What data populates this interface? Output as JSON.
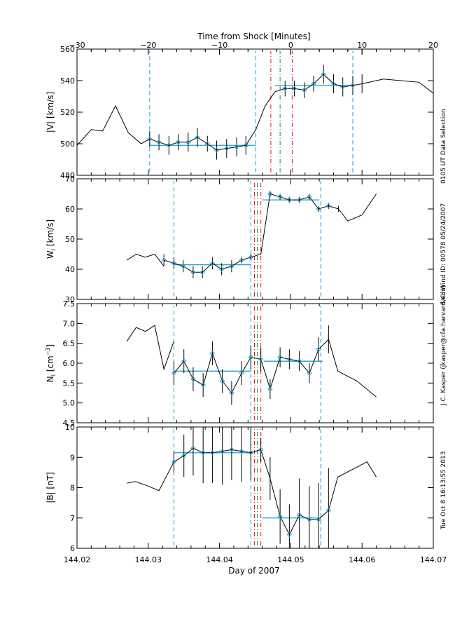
{
  "top_axis": {
    "label": "Time from Shock [Minutes]",
    "ticks": [
      "−30",
      "−20",
      "−10",
      "0",
      "10",
      "20"
    ],
    "range": [
      -30,
      20
    ]
  },
  "bottom_axis": {
    "label": "Day of 2007",
    "ticks": [
      "144.02",
      "144.03",
      "144.04",
      "144.05",
      "144.06",
      "144.07"
    ],
    "range": [
      144.02,
      144.07
    ]
  },
  "side_annotations": {
    "line1": "0105 UT Data Selection",
    "line2": "S/C: Wind ID: 00578 05/24/2007",
    "line3": "J.C. Kasper (jkasper@cfa.harvard.edu)",
    "line4": "Tue Oct  8 16:13:55 2013"
  },
  "colors": {
    "data": "#000000",
    "fit": "#1f9fd0",
    "marker": "#1f9fd0",
    "shock_red": "#d11f1f",
    "shock_green": "#1d8a3a"
  },
  "chart_data": [
    {
      "type": "line",
      "ylabel": "|V| [km/s]",
      "ylim": [
        480,
        560
      ],
      "yticks": [
        "480",
        "500",
        "520",
        "540",
        "560"
      ],
      "x_unit": "Day of 2007",
      "series_line": {
        "x": [
          144.02,
          144.022,
          144.0236,
          144.0254,
          144.0272,
          144.029,
          144.0302
        ],
        "y": [
          499,
          509,
          508,
          524,
          507,
          500,
          503
        ]
      },
      "points": {
        "x": [
          144.0302,
          144.0315,
          144.0329,
          144.0342,
          144.0356,
          144.0369,
          144.0383,
          144.0396,
          144.041,
          144.0424,
          144.0437,
          144.0451,
          144.0464,
          144.0478,
          144.0492,
          144.0505,
          144.0519,
          144.0532,
          144.0546,
          144.056,
          144.0573,
          144.0587,
          144.06
        ],
        "y": [
          503,
          501,
          499,
          501,
          501,
          504,
          500,
          496,
          497,
          498,
          499,
          509,
          524,
          533,
          535,
          535,
          534,
          538,
          544,
          538,
          536,
          537,
          538
        ],
        "err": [
          5,
          5,
          6,
          5,
          6,
          6,
          5,
          6,
          6,
          6,
          6,
          0,
          0,
          0,
          5,
          5,
          5,
          5,
          6,
          6,
          6,
          6,
          6
        ],
        "markers": [
          true,
          true,
          true,
          true,
          true,
          true,
          true,
          true,
          true,
          true,
          true,
          false,
          false,
          false,
          true,
          true,
          true,
          true,
          true,
          true,
          true,
          true,
          false
        ]
      },
      "tail_line": {
        "x": [
          144.06,
          144.063,
          144.068,
          144.07
        ],
        "y": [
          538,
          541,
          539,
          532
        ]
      },
      "fits": [
        {
          "x": [
            144.0302,
            144.0451
          ],
          "y": 499
        },
        {
          "x": [
            144.0478,
            144.0587
          ],
          "y": 537
        }
      ],
      "blue_dashes": [
        144.0302,
        144.0451,
        144.0587
      ],
      "red_dashes": [
        144.0472,
        144.0502
      ],
      "green_dashes": [
        144.0485
      ]
    },
    {
      "type": "line",
      "ylabel": "W_i [km/s]",
      "ylim": [
        30,
        70
      ],
      "yticks": [
        "30",
        "40",
        "50",
        "60",
        "70"
      ],
      "series_line": {
        "x": [
          144.027,
          144.0283,
          144.0296,
          144.0309,
          144.0322
        ],
        "y": [
          43,
          45,
          44,
          45,
          41
        ]
      },
      "points": {
        "x": [
          144.0322,
          144.0336,
          144.0349,
          144.0363,
          144.0376,
          144.039,
          144.0403,
          144.0417,
          144.0431,
          144.0444,
          144.0458,
          144.0471,
          144.0485,
          144.0498,
          144.0512,
          144.0526,
          144.0539,
          144.0553,
          144.0567
        ],
        "y": [
          43,
          42,
          41,
          39,
          39,
          42,
          40,
          41,
          43,
          44,
          45,
          65,
          64,
          63,
          63,
          64,
          60,
          61,
          60
        ],
        "err": [
          2,
          2,
          2,
          2,
          2,
          2,
          2,
          2,
          1,
          1,
          0,
          1,
          1,
          1,
          1,
          1,
          1,
          1,
          1
        ],
        "markers": [
          true,
          true,
          true,
          true,
          true,
          true,
          true,
          true,
          true,
          true,
          false,
          true,
          true,
          true,
          true,
          true,
          true,
          true,
          false
        ]
      },
      "tail_line": {
        "x": [
          144.0567,
          144.058,
          144.06,
          144.062
        ],
        "y": [
          60,
          56,
          58,
          65
        ]
      },
      "fits": [
        {
          "x": [
            144.0336,
            144.0444
          ],
          "y": 41.5
        },
        {
          "x": [
            144.046,
            144.054
          ],
          "y": 63
        }
      ],
      "blue_dashes": [
        144.0336,
        144.0444,
        144.0542
      ],
      "red_dashes": [
        144.0449,
        144.0458
      ],
      "green_dashes": [
        144.0453
      ]
    },
    {
      "type": "line",
      "ylabel": "N_i [cm^-3]",
      "ylim": [
        4.5,
        7.5
      ],
      "yticks": [
        "4.5",
        "5.0",
        "5.5",
        "6.0",
        "6.5",
        "7.0",
        "7.5"
      ],
      "series_line": {
        "x": [
          144.027,
          144.0283,
          144.0296,
          144.0309,
          144.0322,
          144.0336
        ],
        "y": [
          6.55,
          6.9,
          6.8,
          6.95,
          5.85,
          6.55
        ]
      },
      "points": {
        "x": [
          144.0336,
          144.035,
          144.0363,
          144.0377,
          144.039,
          144.0404,
          144.0417,
          144.0431,
          144.0444,
          144.0458,
          144.0471,
          144.0485,
          144.0498,
          144.0512,
          144.0526,
          144.0539,
          144.0553
        ],
        "y": [
          5.75,
          6.05,
          5.6,
          5.45,
          6.25,
          5.55,
          5.25,
          5.75,
          6.15,
          6.1,
          5.35,
          6.15,
          6.1,
          6.05,
          5.75,
          6.35,
          6.6
        ],
        "err": [
          0.3,
          0.3,
          0.3,
          0.3,
          0.3,
          0.3,
          0.3,
          0.3,
          0.3,
          0.3,
          0.25,
          0.25,
          0.25,
          0.25,
          0.25,
          0.3,
          0.35
        ],
        "markers": [
          true,
          true,
          true,
          true,
          true,
          true,
          true,
          true,
          true,
          true,
          true,
          true,
          true,
          true,
          true,
          true,
          false
        ]
      },
      "tail_line": {
        "x": [
          144.0553,
          144.0566,
          144.0593,
          144.062
        ],
        "y": [
          6.6,
          5.8,
          5.55,
          5.15
        ]
      },
      "fits": [
        {
          "x": [
            144.0336,
            144.0444
          ],
          "y": 5.8
        },
        {
          "x": [
            144.0462,
            144.0545
          ],
          "y": 6.05
        }
      ],
      "blue_dashes": [
        144.0336,
        144.0444,
        144.0542
      ],
      "red_dashes": [
        144.0449,
        144.0458
      ],
      "green_dashes": [
        144.0453
      ]
    },
    {
      "type": "line",
      "ylabel": "|B| [nT]",
      "ylim": [
        6,
        10
      ],
      "yticks": [
        "6",
        "7",
        "8",
        "9",
        "10"
      ],
      "series_line": {
        "x": [
          144.027,
          144.0282,
          144.03,
          144.0315,
          144.0336
        ],
        "y": [
          8.15,
          8.2,
          8.05,
          7.9,
          8.85
        ]
      },
      "points": {
        "x": [
          144.0336,
          144.035,
          144.0363,
          144.0377,
          144.039,
          144.0404,
          144.0417,
          144.0431,
          144.0444,
          144.0458,
          144.0471,
          144.0485,
          144.0498,
          144.0512,
          144.0526,
          144.0539,
          144.0553
        ],
        "y": [
          8.85,
          9.05,
          9.3,
          9.15,
          9.15,
          9.2,
          9.25,
          9.2,
          9.15,
          9.25,
          8.3,
          7.05,
          6.45,
          7.1,
          6.95,
          6.95,
          7.25
        ],
        "err": [
          0.35,
          0.7,
          0.9,
          1.0,
          1.0,
          1.1,
          1.0,
          1.0,
          0.9,
          0.4,
          0.7,
          0.9,
          1.0,
          1.2,
          1.1,
          1.2,
          1.4
        ],
        "markers": [
          true,
          true,
          true,
          true,
          true,
          true,
          true,
          true,
          true,
          true,
          false,
          true,
          true,
          true,
          true,
          true,
          true
        ]
      },
      "tail_line": {
        "x": [
          144.0553,
          144.0566,
          144.0607,
          144.062
        ],
        "y": [
          7.25,
          8.35,
          8.85,
          8.35
        ]
      },
      "fits": [
        {
          "x": [
            144.0336,
            144.0444
          ],
          "y": 9.15
        },
        {
          "x": [
            144.046,
            144.0542
          ],
          "y": 7.0
        }
      ],
      "blue_dashes": [
        144.0336,
        144.0444,
        144.0542
      ],
      "red_dashes": [
        144.0449,
        144.0458
      ],
      "green_dashes": [
        144.0453
      ]
    }
  ]
}
